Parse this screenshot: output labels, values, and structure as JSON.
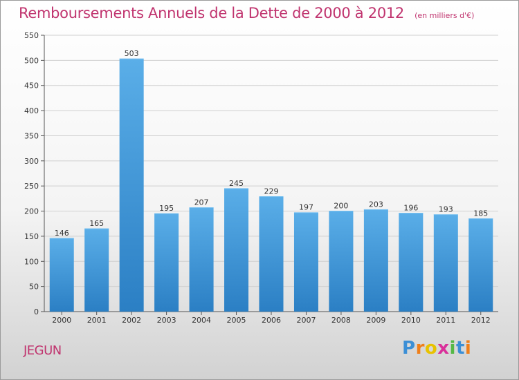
{
  "header": {
    "title": "Remboursements Annuels de la Dette de 2000 à 2012",
    "subtitle": "(en milliers d'€)"
  },
  "footer": {
    "commune": "JEGUN",
    "brand_letters": [
      "P",
      "r",
      "o",
      "x",
      "i",
      "t",
      "i"
    ],
    "brand_colors": [
      "#3b8fd6",
      "#ef7f1a",
      "#e8c200",
      "#d9309a",
      "#55b846",
      "#3b8fd6",
      "#ef7f1a"
    ]
  },
  "colors": {
    "bar_light": "#5aaee8",
    "bar_dark": "#2b7fc4",
    "title": "#c0336e",
    "grid": "#cfcfcf"
  },
  "chart_data": {
    "type": "bar",
    "title": "Remboursements Annuels de la Dette de 2000 à 2012",
    "subtitle": "(en milliers d'€)",
    "categories": [
      "2000",
      "2001",
      "2002",
      "2003",
      "2004",
      "2005",
      "2006",
      "2007",
      "2008",
      "2009",
      "2010",
      "2011",
      "2012"
    ],
    "values": [
      146,
      165,
      503,
      195,
      207,
      245,
      229,
      197,
      200,
      203,
      196,
      193,
      185
    ],
    "ylim": [
      0,
      550
    ],
    "yticks": [
      0,
      50,
      100,
      150,
      200,
      250,
      300,
      350,
      400,
      450,
      500,
      550
    ],
    "grid": true,
    "xlabel": "",
    "ylabel": ""
  }
}
